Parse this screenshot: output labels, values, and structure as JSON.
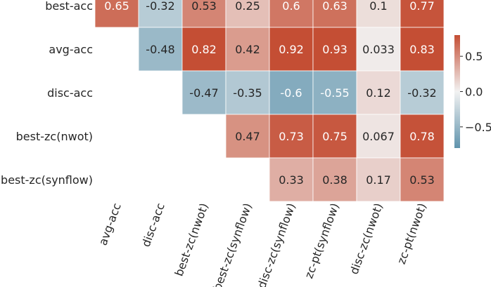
{
  "chart_data": {
    "type": "heatmap",
    "title": "",
    "row_labels": [
      "best-acc",
      "avg-acc",
      "disc-acc",
      "best-zc(nwot)",
      "best-zc(synflow)"
    ],
    "col_labels": [
      "avg-acc",
      "disc-acc",
      "best-zc(nwot)",
      "best-zc(synflow)",
      "disc-zc(synflow)",
      "zc-pt(synflow)",
      "disc-zc(nwot)",
      "zc-pt(nwot)"
    ],
    "values": [
      [
        0.65,
        -0.32,
        0.53,
        0.25,
        0.6,
        0.63,
        0.1,
        0.77
      ],
      [
        null,
        -0.48,
        0.82,
        0.42,
        0.92,
        0.93,
        0.033,
        0.83
      ],
      [
        null,
        null,
        -0.47,
        -0.35,
        -0.6,
        -0.55,
        0.12,
        -0.32
      ],
      [
        null,
        null,
        null,
        0.47,
        0.73,
        0.75,
        0.067,
        0.78
      ],
      [
        null,
        null,
        null,
        null,
        0.33,
        0.38,
        0.17,
        0.53
      ]
    ],
    "value_labels": [
      [
        "0.65",
        "-0.32",
        "0.53",
        "0.25",
        "0.6",
        "0.63",
        "0.1",
        "0.77"
      ],
      [
        null,
        "-0.48",
        "0.82",
        "0.42",
        "0.92",
        "0.93",
        "0.033",
        "0.83"
      ],
      [
        null,
        null,
        "-0.47",
        "-0.35",
        "-0.6",
        "-0.55",
        "0.12",
        "-0.32"
      ],
      [
        null,
        null,
        null,
        "0.47",
        "0.73",
        "0.75",
        "0.067",
        "0.78"
      ],
      [
        null,
        null,
        null,
        null,
        "0.33",
        "0.38",
        "0.17",
        "0.53"
      ]
    ],
    "colorscale": {
      "min": -0.8,
      "max": 0.8,
      "low": "#5f93ac",
      "mid": "#f2f2f2",
      "high": "#c44e34"
    },
    "colorbar": {
      "ticks": [
        0.5,
        0.0,
        -0.5
      ],
      "tick_labels": [
        "0.5",
        "0.0",
        "−0.5"
      ]
    }
  }
}
